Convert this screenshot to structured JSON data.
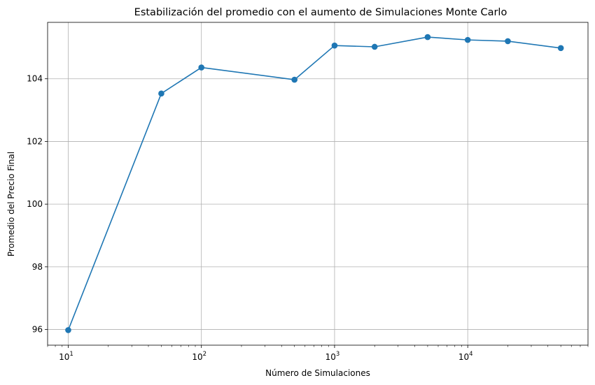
{
  "chart_data": {
    "type": "line",
    "title": "Estabilización del promedio con el aumento de Simulaciones Monte Carlo",
    "xlabel": "Número de Simulaciones",
    "ylabel": "Promedio del Precio Final",
    "xscale": "log",
    "xlim": [
      7,
      80000
    ],
    "ylim": [
      95.5,
      105.8
    ],
    "grid": true,
    "series": [
      {
        "color": "#1f77b4",
        "marker": "circle",
        "x": [
          10,
          50,
          100,
          500,
          1000,
          2000,
          5000,
          10000,
          20000,
          50000
        ],
        "y": [
          95.98,
          103.53,
          104.36,
          103.97,
          105.06,
          105.02,
          105.33,
          105.24,
          105.2,
          104.98
        ]
      }
    ],
    "x_ticks": [
      {
        "value": 10,
        "base": "10",
        "exp": "1"
      },
      {
        "value": 100,
        "base": "10",
        "exp": "2"
      },
      {
        "value": 1000,
        "base": "10",
        "exp": "3"
      },
      {
        "value": 10000,
        "base": "10",
        "exp": "4"
      }
    ],
    "y_ticks": [
      {
        "value": 96,
        "label": "96"
      },
      {
        "value": 98,
        "label": "98"
      },
      {
        "value": 100,
        "label": "100"
      },
      {
        "value": 102,
        "label": "102"
      },
      {
        "value": 104,
        "label": "104"
      }
    ]
  }
}
